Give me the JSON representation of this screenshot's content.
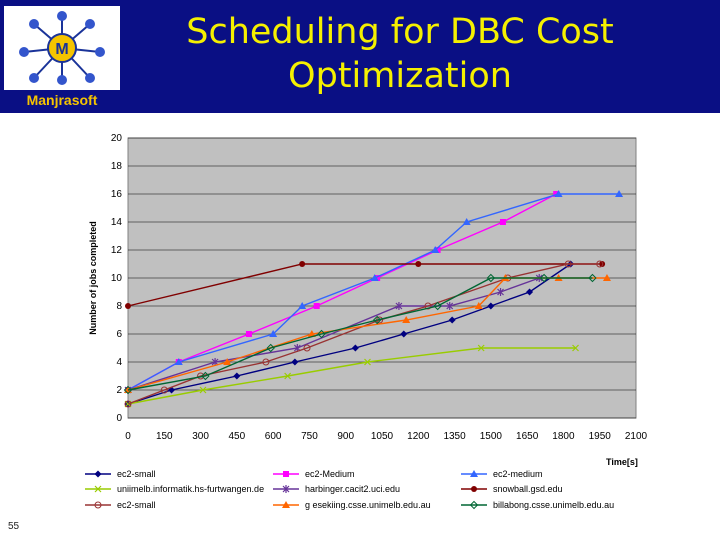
{
  "slide": {
    "title_line1": "Scheduling for DBC Cost",
    "title_line2": "Optimization",
    "logo_text": "Manjrasoft",
    "page_number": "55"
  },
  "colors": {
    "header_bg": "#0a0f84",
    "title": "#f5f000",
    "plot_bg": "#c0c0c0"
  },
  "chart_data": {
    "type": "line",
    "title": "",
    "xlabel": "Time[s]",
    "ylabel": "Number of jobs completed",
    "xlim": [
      0,
      2100
    ],
    "ylim": [
      0,
      20
    ],
    "x_ticks": [
      0,
      150,
      300,
      450,
      600,
      750,
      900,
      1050,
      1200,
      1350,
      1500,
      1650,
      1800,
      1950,
      2100
    ],
    "y_ticks": [
      0,
      2,
      4,
      6,
      8,
      10,
      12,
      14,
      16,
      18,
      20
    ],
    "grid": true,
    "legend_position": "bottom",
    "series": [
      {
        "name": "ec2-small",
        "color": "#000080",
        "marker": "diamond",
        "points": [
          [
            0,
            1
          ],
          [
            180,
            2
          ],
          [
            450,
            3
          ],
          [
            690,
            4
          ],
          [
            940,
            5
          ],
          [
            1140,
            6
          ],
          [
            1340,
            7
          ],
          [
            1500,
            8
          ],
          [
            1660,
            9
          ],
          [
            1830,
            11
          ]
        ]
      },
      {
        "name": "ec2-Medium",
        "color": "#ff00ff",
        "marker": "square",
        "points": [
          [
            0,
            2
          ],
          [
            210,
            4
          ],
          [
            500,
            6
          ],
          [
            780,
            8
          ],
          [
            1030,
            10
          ],
          [
            1280,
            12
          ],
          [
            1550,
            14
          ],
          [
            1770,
            16
          ]
        ]
      },
      {
        "name": "ec2-medium",
        "color": "#3366ff",
        "marker": "triangle",
        "points": [
          [
            0,
            2
          ],
          [
            210,
            4
          ],
          [
            600,
            6
          ],
          [
            720,
            8
          ],
          [
            1020,
            10
          ],
          [
            1270,
            12
          ],
          [
            1400,
            14
          ],
          [
            1780,
            16
          ],
          [
            2030,
            16
          ]
        ]
      },
      {
        "name": "uniimelb.informatik.hs-furtwangen.de",
        "color": "#99cc00",
        "marker": "x",
        "points": [
          [
            0,
            1
          ],
          [
            310,
            2
          ],
          [
            660,
            3
          ],
          [
            990,
            4
          ],
          [
            1460,
            5
          ],
          [
            1850,
            5
          ]
        ]
      },
      {
        "name": "harbinger.cacit2.uci.edu",
        "color": "#663399",
        "marker": "star",
        "points": [
          [
            0,
            2
          ],
          [
            360,
            4
          ],
          [
            700,
            5
          ],
          [
            1120,
            8
          ],
          [
            1330,
            8
          ],
          [
            1540,
            9
          ],
          [
            1700,
            10
          ]
        ]
      },
      {
        "name": "snowball.gsd.edu",
        "color": "#800000",
        "marker": "circle",
        "points": [
          [
            0,
            8
          ],
          [
            720,
            11
          ],
          [
            1200,
            11
          ],
          [
            1960,
            11
          ]
        ]
      },
      {
        "name": "ec2-small",
        "color": "#993333",
        "marker": "circle-open",
        "points": [
          [
            0,
            1
          ],
          [
            150,
            2
          ],
          [
            300,
            3
          ],
          [
            570,
            4
          ],
          [
            740,
            5
          ],
          [
            1040,
            7
          ],
          [
            1240,
            8
          ],
          [
            1570,
            10
          ],
          [
            1820,
            11
          ],
          [
            1950,
            11
          ]
        ]
      },
      {
        "name": "g esekiing.csse.unimelb.edu.au",
        "color": "#ff6600",
        "marker": "triangle",
        "points": [
          [
            0,
            2
          ],
          [
            410,
            4
          ],
          [
            760,
            6
          ],
          [
            1150,
            7
          ],
          [
            1450,
            8
          ],
          [
            1560,
            10
          ],
          [
            1780,
            10
          ],
          [
            1980,
            10
          ]
        ]
      },
      {
        "name": "billabong.csse.unimelb.edu.au",
        "color": "#006633",
        "marker": "diamond-open",
        "points": [
          [
            0,
            2
          ],
          [
            320,
            3
          ],
          [
            590,
            5
          ],
          [
            800,
            6
          ],
          [
            1030,
            7
          ],
          [
            1280,
            8
          ],
          [
            1500,
            10
          ],
          [
            1720,
            10
          ],
          [
            1920,
            10
          ]
        ]
      }
    ]
  }
}
